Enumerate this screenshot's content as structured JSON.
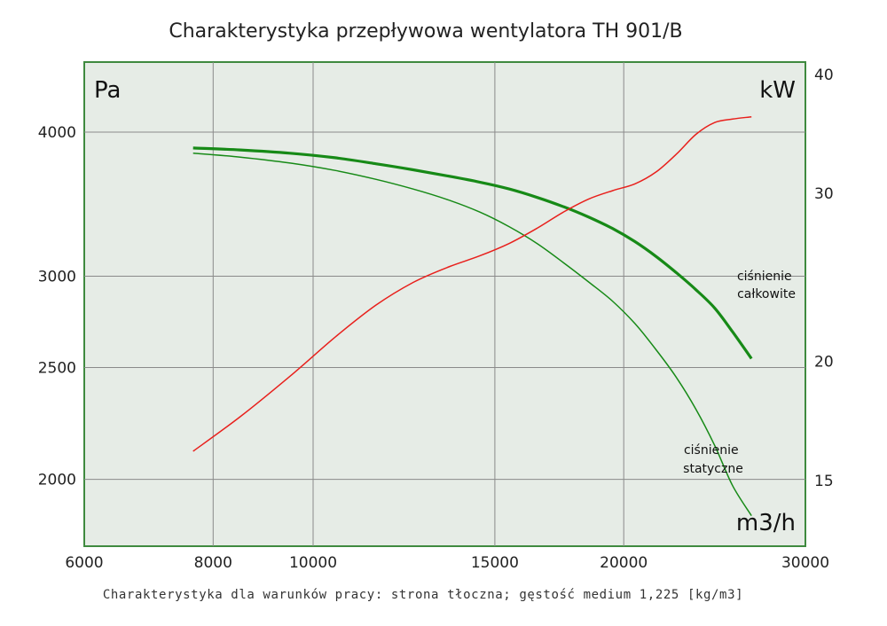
{
  "chart_data": {
    "type": "line",
    "title": "Charakterystyka przepływowa wentylatora TH 901/B",
    "subtitle": "Charakterystyka dla warunków pracy: strona tłoczna; gęstość medium 1,225 [kg/m3]",
    "x_unit": "m3/h",
    "y_left_unit": "Pa",
    "y_right_unit": "kW",
    "x_scale": "log",
    "y_left_scale": "log",
    "y_right_scale": "log",
    "xlim": [
      6000,
      30000
    ],
    "ylim_left": [
      1750,
      4600
    ],
    "ylim_right": [
      12.8,
      41.2
    ],
    "x_ticks": [
      6000,
      8000,
      10000,
      15000,
      20000,
      30000
    ],
    "x_tick_labels": [
      "6000",
      "8000",
      "10000",
      "15000",
      "20000",
      "30000"
    ],
    "x_gridlines": [
      8000,
      10000,
      15000,
      20000
    ],
    "y_left_ticks": [
      2000,
      2500,
      3000,
      4000
    ],
    "y_left_tick_labels": [
      "2000",
      "2500",
      "3000",
      "4000"
    ],
    "y_right_ticks": [
      15,
      20,
      30,
      40
    ],
    "y_right_tick_labels": [
      "15",
      "20",
      "30",
      "40"
    ],
    "y_gridlines": [
      2000,
      2500,
      3000,
      4000
    ],
    "grid": true,
    "legend": "none",
    "series": [
      {
        "name": "ciśnienie całkowite",
        "axis": "left",
        "color": "#178a17",
        "x": [
          7650,
          8500,
          9500,
          10500,
          11500,
          12500,
          13500,
          14500,
          15500,
          16500,
          17500,
          18500,
          19500,
          20500,
          21500,
          22500,
          23500,
          24500,
          25500,
          26600
        ],
        "y": [
          3875,
          3860,
          3835,
          3800,
          3755,
          3710,
          3665,
          3620,
          3570,
          3510,
          3445,
          3375,
          3300,
          3215,
          3120,
          3020,
          2920,
          2815,
          2685,
          2545
        ]
      },
      {
        "name": "ciśnienie statyczne",
        "axis": "left",
        "color": "#178a17",
        "x": [
          7650,
          8500,
          9500,
          10500,
          11500,
          12500,
          13500,
          14500,
          15500,
          16500,
          17500,
          18500,
          19500,
          20500,
          21500,
          22500,
          23500,
          24500,
          25500,
          26600
        ],
        "y": [
          3835,
          3805,
          3760,
          3705,
          3640,
          3570,
          3495,
          3410,
          3310,
          3200,
          3080,
          2965,
          2855,
          2730,
          2590,
          2450,
          2300,
          2140,
          1975,
          1860
        ]
      },
      {
        "name": "",
        "axis": "right",
        "color": "#e8201c",
        "x": [
          7650,
          8500,
          9500,
          10500,
          11500,
          12500,
          13500,
          14500,
          15500,
          16500,
          17500,
          18500,
          19500,
          20500,
          21500,
          22500,
          23500,
          24500,
          25500,
          26600
        ],
        "y": [
          16.1,
          17.5,
          19.3,
          21.2,
          22.9,
          24.2,
          25.1,
          25.8,
          26.6,
          27.6,
          28.7,
          29.6,
          30.2,
          30.7,
          31.6,
          33.0,
          34.6,
          35.6,
          35.9,
          36.1
        ]
      }
    ],
    "annotations": [
      {
        "lines": [
          "ciśnienie",
          "całkowite"
        ]
      },
      {
        "lines": [
          "ciśnienie",
          "statyczne"
        ]
      }
    ]
  }
}
